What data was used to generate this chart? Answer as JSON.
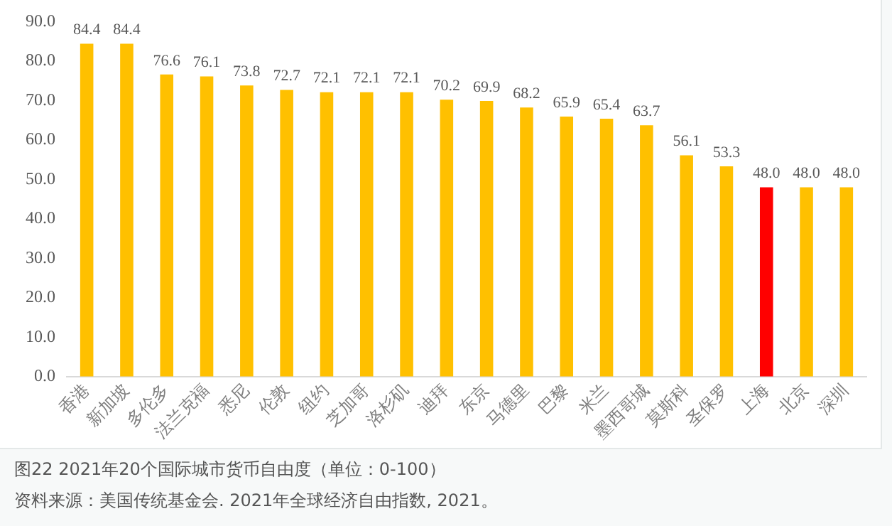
{
  "chart_data": {
    "type": "bar",
    "title": "图22   2021年20个国际城市货币自由度（单位：0-100）",
    "categories": [
      "香港",
      "新加坡",
      "多伦多",
      "法兰克福",
      "悉尼",
      "伦敦",
      "纽约",
      "芝加哥",
      "洛杉矶",
      "迪拜",
      "东京",
      "马德里",
      "巴黎",
      "米兰",
      "墨西哥城",
      "莫斯科",
      "圣保罗",
      "上海",
      "北京",
      "深圳"
    ],
    "values": [
      84.4,
      84.4,
      76.6,
      76.1,
      73.8,
      72.7,
      72.1,
      72.1,
      72.1,
      70.2,
      69.9,
      68.2,
      65.9,
      65.4,
      63.7,
      56.1,
      53.3,
      48.0,
      48.0,
      48.0
    ],
    "value_labels": [
      "84.4",
      "84.4",
      "76.6",
      "76.1",
      "73.8",
      "72.7",
      "72.1",
      "72.1",
      "72.1",
      "70.2",
      "69.9",
      "68.2",
      "65.9",
      "65.4",
      "63.7",
      "56.1",
      "53.3",
      "48.0",
      "48.0",
      "48.0"
    ],
    "colors": [
      "#ffc000",
      "#ffc000",
      "#ffc000",
      "#ffc000",
      "#ffc000",
      "#ffc000",
      "#ffc000",
      "#ffc000",
      "#ffc000",
      "#ffc000",
      "#ffc000",
      "#ffc000",
      "#ffc000",
      "#ffc000",
      "#ffc000",
      "#ffc000",
      "#ffc000",
      "#ff0000",
      "#ffc000",
      "#ffc000"
    ],
    "ylim": [
      0,
      90
    ],
    "yticks": [
      {
        "value": 0,
        "label": "0.0"
      },
      {
        "value": 10,
        "label": "10.0"
      },
      {
        "value": 20,
        "label": "20.0"
      },
      {
        "value": 30,
        "label": "30.0"
      },
      {
        "value": 40,
        "label": "40.0"
      },
      {
        "value": 50,
        "label": "50.0"
      },
      {
        "value": 60,
        "label": "60.0"
      },
      {
        "value": 70,
        "label": "70.0"
      },
      {
        "value": 80,
        "label": "80.0"
      },
      {
        "value": 90,
        "label": "90.0"
      }
    ],
    "grid": false,
    "legend": false,
    "annotations": [
      "资料来源：美国传统基金会. 2021年全球经济自由指数, 2021。"
    ]
  }
}
